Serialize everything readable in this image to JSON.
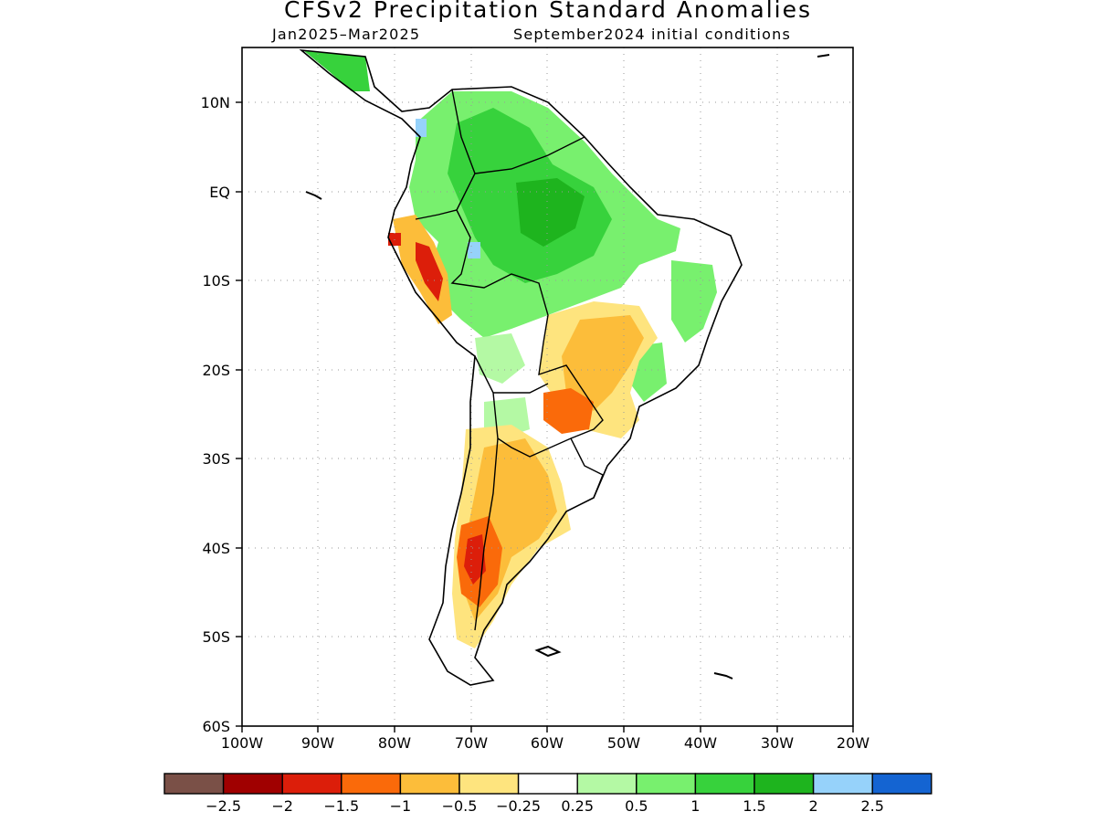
{
  "title": "CFSv2 Precipitation Standard Anomalies",
  "subtitle_left": "Jan2025–Mar2025",
  "subtitle_right": "September2024 initial conditions",
  "lat_ticks": [
    "10N",
    "EQ",
    "10S",
    "20S",
    "30S",
    "40S",
    "50S",
    "60S"
  ],
  "lon_ticks": [
    "100W",
    "90W",
    "80W",
    "70W",
    "60W",
    "50W",
    "40W",
    "30W",
    "20W"
  ],
  "colorbar": {
    "colors": [
      "#7a5047",
      "#a00000",
      "#dc1e0a",
      "#fa6a0a",
      "#fcbd3a",
      "#fee47e",
      "#ffffff",
      "#b4f9a4",
      "#78f06e",
      "#37d23c",
      "#1eb41e",
      "#96d2fa",
      "#1464d2"
    ],
    "labels": [
      "-2.5",
      "-2",
      "-1.5",
      "-1",
      "-0.5",
      "-0.25",
      "0.25",
      "0.5",
      "1",
      "1.5",
      "2",
      "2.5"
    ]
  }
}
